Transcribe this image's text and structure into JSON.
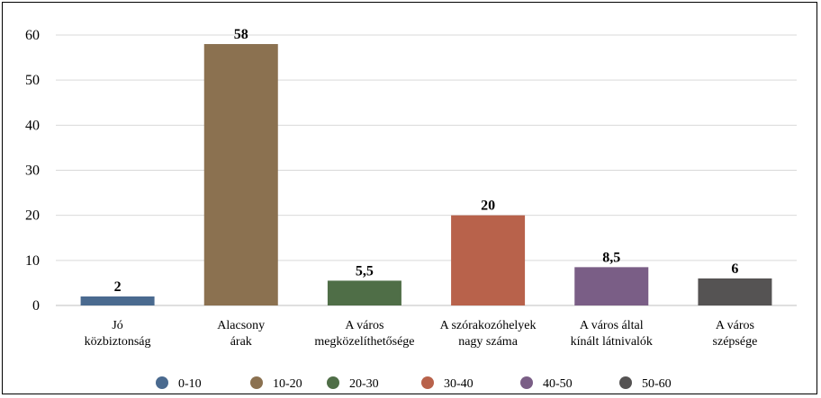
{
  "chart_data": {
    "type": "bar",
    "categories": [
      [
        "Jó",
        "közbiztonság"
      ],
      [
        "Alacsony",
        "árak"
      ],
      [
        "A város",
        "megközelíthetősége"
      ],
      [
        "A szórakozóhelyek",
        "nagy száma"
      ],
      [
        "A város által",
        "kínált látnivalók"
      ],
      [
        "A város",
        "szépsége"
      ]
    ],
    "values": [
      2,
      58,
      5.5,
      20,
      8.5,
      6
    ],
    "value_labels": [
      "2",
      "58",
      "5,5",
      "20",
      "8,5",
      "6"
    ],
    "colors": [
      "#4a6a8f",
      "#8b7150",
      "#4f6e47",
      "#b8624b",
      "#7a5e86",
      "#555353"
    ],
    "ylim": [
      0,
      60
    ],
    "yticks": [
      0,
      10,
      20,
      30,
      40,
      50,
      60
    ],
    "grid": true,
    "legend_position": "bottom",
    "legend": [
      {
        "label": "0-10",
        "color": "#4a6a8f"
      },
      {
        "label": "10-20",
        "color": "#8b7150"
      },
      {
        "label": "20-30",
        "color": "#4f6e47"
      },
      {
        "label": "30-40",
        "color": "#b8624b"
      },
      {
        "label": "40-50",
        "color": "#7a5e86"
      },
      {
        "label": "50-60",
        "color": "#555353"
      }
    ]
  }
}
